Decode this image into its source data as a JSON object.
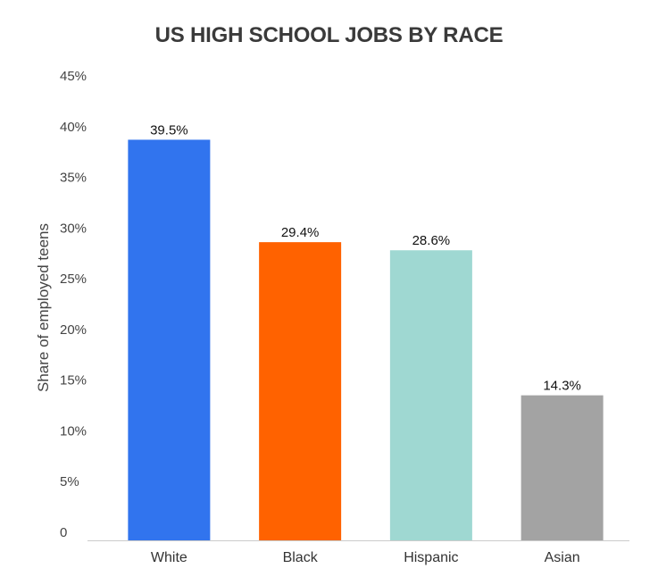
{
  "chart_data": {
    "type": "bar",
    "title": "US HIGH SCHOOL JOBS BY RACE",
    "xlabel": "",
    "ylabel": "Share of employed teens",
    "categories": [
      "White",
      "Black",
      "Hispanic",
      "Asian"
    ],
    "values": [
      39.5,
      29.4,
      28.6,
      14.3
    ],
    "data_labels": [
      "39.5%",
      "29.4%",
      "28.6%",
      "14.3%"
    ],
    "colors": [
      "#3174ee",
      "#ff6200",
      "#9fd8d2",
      "#a3a3a3"
    ],
    "ylim": [
      0,
      45
    ],
    "yticks": [
      0,
      5,
      10,
      15,
      20,
      25,
      30,
      35,
      40,
      45
    ],
    "ytick_labels": [
      "0",
      "5%",
      "10%",
      "15%",
      "20%",
      "25%",
      "30%",
      "35%",
      "40%",
      "45%"
    ],
    "grid": false,
    "legend": "none"
  }
}
